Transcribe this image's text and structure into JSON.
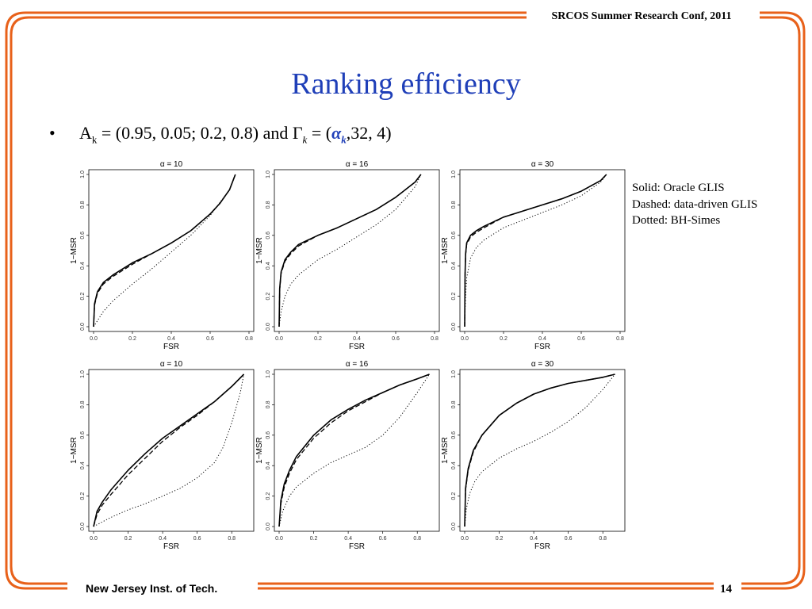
{
  "header": {
    "conference": "SRCOS Summer Research Conf, 2011"
  },
  "slide": {
    "title": "Ranking efficiency",
    "bullet": {
      "marker": "•",
      "A": "A",
      "A_sub": "k",
      "A_value": " = (0.95, 0.05; 0.2, 0.8) and Γ",
      "gamma_sub": "k",
      "gamma_value_open": " = (",
      "alpha_k": "α",
      "alpha_k_sub": "k",
      "gamma_value_close": ",32, 4)"
    },
    "legend": {
      "solid": "Solid: Oracle GLIS",
      "dashed": "Dashed: data-driven GLIS",
      "dotted": "Dotted: BH-Simes"
    }
  },
  "footer": {
    "institution": "New Jersey Inst. of Tech.",
    "page": "14"
  },
  "colors": {
    "frame": "#e8611a",
    "title": "#1f3fb8",
    "alpha_k": "#1f3fb8"
  },
  "chart_data": [
    {
      "type": "line",
      "title": "α = 10",
      "xlabel": "FSR",
      "ylabel": "1−MSR",
      "xlim": [
        0,
        0.8
      ],
      "ylim": [
        0,
        1.0
      ],
      "xticks": [
        "0.0",
        "0.2",
        "0.4",
        "0.6",
        "0.8"
      ],
      "yticks": [
        "0.0",
        "0.2",
        "0.4",
        "0.6",
        "0.8",
        "1.0"
      ],
      "series": [
        {
          "name": "Oracle GLIS",
          "style": "solid",
          "x": [
            0,
            0.005,
            0.02,
            0.05,
            0.1,
            0.2,
            0.3,
            0.4,
            0.5,
            0.6,
            0.65,
            0.7,
            0.73
          ],
          "y": [
            0,
            0.15,
            0.23,
            0.29,
            0.34,
            0.42,
            0.48,
            0.55,
            0.63,
            0.74,
            0.81,
            0.9,
            1.0
          ]
        },
        {
          "name": "data-driven GLIS",
          "style": "dashed",
          "x": [
            0,
            0.005,
            0.02,
            0.05,
            0.1,
            0.2,
            0.3,
            0.4,
            0.5,
            0.6,
            0.65,
            0.7,
            0.73
          ],
          "y": [
            0,
            0.14,
            0.22,
            0.28,
            0.33,
            0.41,
            0.48,
            0.55,
            0.63,
            0.74,
            0.81,
            0.9,
            1.0
          ]
        },
        {
          "name": "BH-Simes",
          "style": "dotted",
          "x": [
            0,
            0.05,
            0.1,
            0.2,
            0.3,
            0.4,
            0.5,
            0.6,
            0.7,
            0.73
          ],
          "y": [
            0,
            0.1,
            0.17,
            0.28,
            0.38,
            0.49,
            0.6,
            0.73,
            0.9,
            1.0
          ]
        }
      ]
    },
    {
      "type": "line",
      "title": "α = 16",
      "xlabel": "FSR",
      "ylabel": "1−MSR",
      "xlim": [
        0,
        0.8
      ],
      "ylim": [
        0,
        1.0
      ],
      "xticks": [
        "0.0",
        "0.2",
        "0.4",
        "0.6",
        "0.8"
      ],
      "yticks": [
        "0.0",
        "0.2",
        "0.4",
        "0.6",
        "0.8",
        "1.0"
      ],
      "series": [
        {
          "name": "Oracle GLIS",
          "style": "solid",
          "x": [
            0,
            0.003,
            0.01,
            0.03,
            0.06,
            0.1,
            0.2,
            0.3,
            0.4,
            0.5,
            0.6,
            0.7,
            0.73
          ],
          "y": [
            0,
            0.25,
            0.36,
            0.44,
            0.49,
            0.54,
            0.6,
            0.65,
            0.71,
            0.77,
            0.85,
            0.95,
            1.0
          ]
        },
        {
          "name": "data-driven GLIS",
          "style": "dashed",
          "x": [
            0,
            0.003,
            0.01,
            0.03,
            0.06,
            0.1,
            0.2,
            0.3,
            0.4,
            0.5,
            0.6,
            0.7,
            0.73
          ],
          "y": [
            0,
            0.24,
            0.35,
            0.43,
            0.48,
            0.53,
            0.6,
            0.65,
            0.71,
            0.77,
            0.85,
            0.95,
            1.0
          ]
        },
        {
          "name": "BH-Simes",
          "style": "dotted",
          "x": [
            0,
            0.01,
            0.03,
            0.06,
            0.1,
            0.2,
            0.3,
            0.4,
            0.5,
            0.6,
            0.7,
            0.73
          ],
          "y": [
            0,
            0.1,
            0.2,
            0.28,
            0.34,
            0.44,
            0.51,
            0.59,
            0.67,
            0.77,
            0.92,
            1.0
          ]
        }
      ]
    },
    {
      "type": "line",
      "title": "α = 30",
      "xlabel": "FSR",
      "ylabel": "1−MSR",
      "xlim": [
        0,
        0.8
      ],
      "ylim": [
        0,
        1.0
      ],
      "xticks": [
        "0.0",
        "0.2",
        "0.4",
        "0.6",
        "0.8"
      ],
      "yticks": [
        "0.0",
        "0.2",
        "0.4",
        "0.6",
        "0.8",
        "1.0"
      ],
      "series": [
        {
          "name": "Oracle GLIS",
          "style": "solid",
          "x": [
            0,
            0.002,
            0.005,
            0.01,
            0.03,
            0.06,
            0.1,
            0.2,
            0.3,
            0.4,
            0.5,
            0.6,
            0.7,
            0.73
          ],
          "y": [
            0,
            0.35,
            0.48,
            0.55,
            0.6,
            0.63,
            0.66,
            0.72,
            0.76,
            0.8,
            0.84,
            0.89,
            0.96,
            1.0
          ]
        },
        {
          "name": "data-driven GLIS",
          "style": "dashed",
          "x": [
            0,
            0.002,
            0.005,
            0.01,
            0.03,
            0.06,
            0.1,
            0.2,
            0.3,
            0.4,
            0.5,
            0.6,
            0.7,
            0.73
          ],
          "y": [
            0,
            0.34,
            0.47,
            0.54,
            0.59,
            0.62,
            0.65,
            0.72,
            0.76,
            0.8,
            0.84,
            0.89,
            0.96,
            1.0
          ]
        },
        {
          "name": "BH-Simes",
          "style": "dotted",
          "x": [
            0,
            0.002,
            0.005,
            0.01,
            0.03,
            0.06,
            0.1,
            0.2,
            0.3,
            0.4,
            0.5,
            0.6,
            0.7,
            0.73
          ],
          "y": [
            0,
            0.1,
            0.2,
            0.32,
            0.45,
            0.52,
            0.57,
            0.65,
            0.7,
            0.75,
            0.8,
            0.86,
            0.95,
            1.0
          ]
        }
      ]
    },
    {
      "type": "line",
      "title": "α = 10",
      "xlabel": "FSR",
      "ylabel": "1−MSR",
      "xlim": [
        0,
        0.9
      ],
      "ylim": [
        0,
        1.0
      ],
      "xticks": [
        "0.0",
        "0.2",
        "0.4",
        "0.6",
        "0.8"
      ],
      "yticks": [
        "0.0",
        "0.2",
        "0.4",
        "0.6",
        "0.8",
        "1.0"
      ],
      "series": [
        {
          "name": "Oracle GLIS",
          "style": "solid",
          "x": [
            0,
            0.02,
            0.05,
            0.1,
            0.2,
            0.3,
            0.4,
            0.5,
            0.6,
            0.7,
            0.8,
            0.87
          ],
          "y": [
            0,
            0.1,
            0.16,
            0.24,
            0.37,
            0.48,
            0.58,
            0.66,
            0.74,
            0.82,
            0.92,
            1.0
          ]
        },
        {
          "name": "data-driven GLIS",
          "style": "dashed",
          "x": [
            0,
            0.02,
            0.05,
            0.1,
            0.2,
            0.3,
            0.4,
            0.5,
            0.6,
            0.7,
            0.8,
            0.87
          ],
          "y": [
            0,
            0.08,
            0.14,
            0.21,
            0.34,
            0.45,
            0.56,
            0.65,
            0.73,
            0.82,
            0.92,
            1.0
          ]
        },
        {
          "name": "BH-Simes",
          "style": "dotted",
          "x": [
            0,
            0.1,
            0.2,
            0.3,
            0.4,
            0.5,
            0.6,
            0.7,
            0.75,
            0.8,
            0.85,
            0.87
          ],
          "y": [
            0,
            0.06,
            0.11,
            0.15,
            0.2,
            0.25,
            0.32,
            0.42,
            0.52,
            0.68,
            0.88,
            1.0
          ]
        }
      ]
    },
    {
      "type": "line",
      "title": "α = 16",
      "xlabel": "FSR",
      "ylabel": "1−MSR",
      "xlim": [
        0,
        0.9
      ],
      "ylim": [
        0,
        1.0
      ],
      "xticks": [
        "0.0",
        "0.2",
        "0.4",
        "0.6",
        "0.8"
      ],
      "yticks": [
        "0.0",
        "0.2",
        "0.4",
        "0.6",
        "0.8",
        "1.0"
      ],
      "series": [
        {
          "name": "Oracle GLIS",
          "style": "solid",
          "x": [
            0,
            0.01,
            0.03,
            0.06,
            0.1,
            0.2,
            0.3,
            0.4,
            0.5,
            0.6,
            0.7,
            0.8,
            0.87
          ],
          "y": [
            0,
            0.17,
            0.28,
            0.37,
            0.46,
            0.6,
            0.7,
            0.77,
            0.83,
            0.88,
            0.93,
            0.97,
            1.0
          ]
        },
        {
          "name": "data-driven GLIS",
          "style": "dashed",
          "x": [
            0,
            0.01,
            0.03,
            0.06,
            0.1,
            0.2,
            0.3,
            0.4,
            0.5,
            0.6,
            0.7,
            0.8,
            0.87
          ],
          "y": [
            0,
            0.15,
            0.26,
            0.35,
            0.44,
            0.58,
            0.68,
            0.76,
            0.82,
            0.88,
            0.93,
            0.97,
            1.0
          ]
        },
        {
          "name": "BH-Simes",
          "style": "dotted",
          "x": [
            0,
            0.02,
            0.06,
            0.1,
            0.2,
            0.3,
            0.4,
            0.5,
            0.6,
            0.7,
            0.8,
            0.87
          ],
          "y": [
            0,
            0.1,
            0.2,
            0.26,
            0.35,
            0.42,
            0.47,
            0.52,
            0.6,
            0.72,
            0.88,
            1.0
          ]
        }
      ]
    },
    {
      "type": "line",
      "title": "α = 30",
      "xlabel": "FSR",
      "ylabel": "1−MSR",
      "xlim": [
        0,
        0.9
      ],
      "ylim": [
        0,
        1.0
      ],
      "xticks": [
        "0.0",
        "0.2",
        "0.4",
        "0.6",
        "0.8"
      ],
      "yticks": [
        "0.0",
        "0.2",
        "0.4",
        "0.6",
        "0.8",
        "1.0"
      ],
      "series": [
        {
          "name": "Oracle GLIS",
          "style": "solid",
          "x": [
            0,
            0.005,
            0.02,
            0.05,
            0.1,
            0.2,
            0.3,
            0.4,
            0.5,
            0.6,
            0.7,
            0.8,
            0.87
          ],
          "y": [
            0,
            0.25,
            0.38,
            0.5,
            0.6,
            0.73,
            0.81,
            0.87,
            0.91,
            0.94,
            0.96,
            0.98,
            1.0
          ]
        },
        {
          "name": "data-driven GLIS",
          "style": "dashed",
          "x": [
            0,
            0.005,
            0.02,
            0.05,
            0.1,
            0.2,
            0.3,
            0.4,
            0.5,
            0.6,
            0.7,
            0.8,
            0.87
          ],
          "y": [
            0,
            0.24,
            0.37,
            0.49,
            0.6,
            0.73,
            0.81,
            0.87,
            0.91,
            0.94,
            0.96,
            0.98,
            1.0
          ]
        },
        {
          "name": "BH-Simes",
          "style": "dotted",
          "x": [
            0,
            0.01,
            0.03,
            0.06,
            0.1,
            0.2,
            0.3,
            0.4,
            0.5,
            0.6,
            0.7,
            0.8,
            0.87
          ],
          "y": [
            0,
            0.12,
            0.22,
            0.3,
            0.36,
            0.45,
            0.51,
            0.56,
            0.62,
            0.69,
            0.78,
            0.9,
            1.0
          ]
        }
      ]
    }
  ]
}
